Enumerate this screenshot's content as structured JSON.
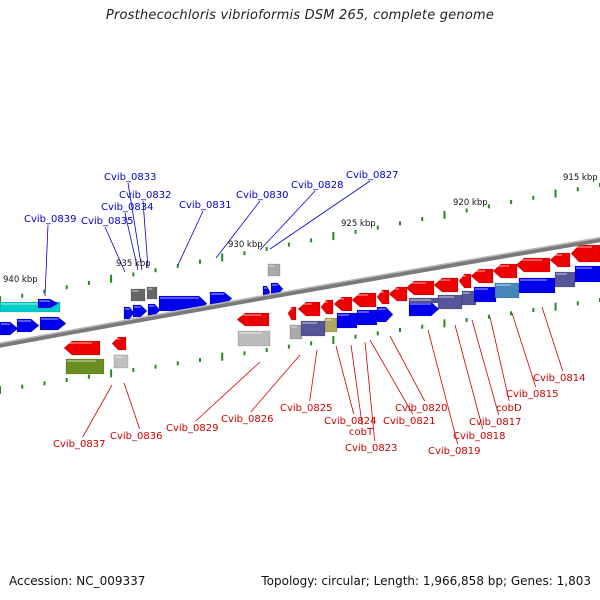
{
  "title": "Prosthecochloris vibrioformis DSM 265, complete genome",
  "footer": {
    "accession": "Accession: NC_009337",
    "topology": "Topology: circular; Length: 1,966,858 bp; Genes: 1,803"
  },
  "scale_labels": [
    "915 kbp",
    "920 kbp",
    "925 kbp",
    "930 kbp",
    "935 kbp",
    "940 kbp"
  ],
  "colors": {
    "forward_label": "#0000cc",
    "reverse_label": "#cc0000",
    "forward_gene": "#0000ee",
    "reverse_gene": "#ee0000",
    "backbone": "#888888",
    "tick": "#228b22"
  },
  "gene_labels_top": [
    "Cvib_0839",
    "Cvib_0835",
    "Cvib_0834",
    "Cvib_0833",
    "Cvib_0832",
    "Cvib_0831",
    "Cvib_0830",
    "Cvib_0828",
    "Cvib_0827"
  ],
  "gene_labels_bottom": [
    "Cvib_0837",
    "Cvib_0836",
    "Cvib_0829",
    "Cvib_0826",
    "Cvib_0825",
    "Cvib_0824",
    "cobT",
    "Cvib_0823",
    "Cvib_0821",
    "Cvib_0820",
    "Cvib_0819",
    "Cvib_0818",
    "Cvib_0817",
    "cobD",
    "Cvib_0815",
    "Cvib_0814"
  ]
}
